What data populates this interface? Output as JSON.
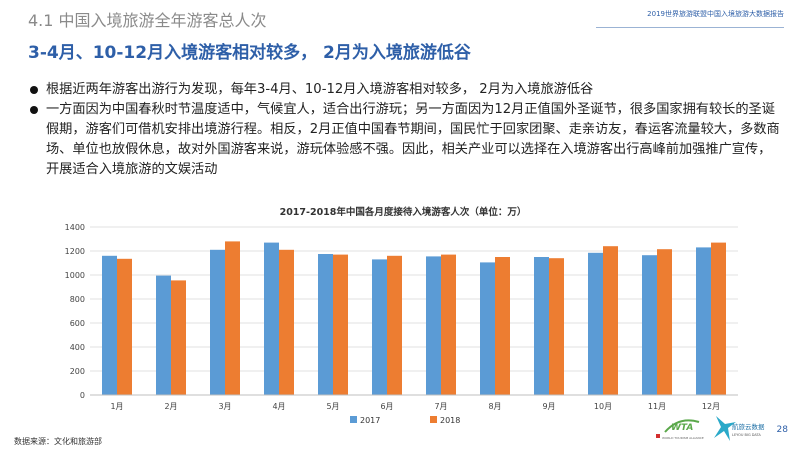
{
  "header": {
    "section_title": "4.1 中国入境旅游全年游客总人次",
    "report_title": "2019世界旅游联盟中国入境旅游大数据报告",
    "headline": "3-4月、10-12月入境游客相对较多， 2月为入境旅游低谷"
  },
  "bullets": [
    "根据近两年游客出游行为发现，每年3-4月、10-12月入境游客相对较多， 2月为入境旅游低谷",
    "一方面因为中国春秋时节温度适中，气候宜人，适合出行游玩；另一方面因为12月正值国外圣诞节，很多国家拥有较长的圣诞假期，游客们可借机安排出境游行程。相反，2月正值中国春节期间，国民忙于回家团聚、走亲访友，春运客流量较大，多数商场、单位也放假休息，故对外国游客来说，游玩体验感不强。因此，相关产业可以选择在入境游客出行高峰前加强推广宣传，开展适合入境旅游的文娱活动"
  ],
  "chart_data": {
    "type": "bar",
    "title": "2017-2018年中国各月度接待入境游客人次（单位：万）",
    "categories": [
      "1月",
      "2月",
      "3月",
      "4月",
      "5月",
      "6月",
      "7月",
      "8月",
      "9月",
      "10月",
      "11月",
      "12月"
    ],
    "series": [
      {
        "name": "2017",
        "color": "#5b9bd5",
        "values": [
          1160,
          995,
          1210,
          1270,
          1175,
          1130,
          1155,
          1105,
          1150,
          1185,
          1165,
          1230
        ]
      },
      {
        "name": "2018",
        "color": "#ed7d31",
        "values": [
          1135,
          955,
          1280,
          1210,
          1170,
          1160,
          1170,
          1150,
          1140,
          1240,
          1215,
          1270
        ]
      }
    ],
    "ylim": [
      0,
      1400
    ],
    "yticks": [
      0,
      200,
      400,
      600,
      800,
      1000,
      1200,
      1400
    ],
    "grid": true,
    "legend": "bottom"
  },
  "footer": {
    "source": "数据来源：文化和旅游部",
    "page_number": "28"
  },
  "logos": {
    "wta_text": "WTA",
    "wta_subtext": "WORLD TOURISM ALLIANCE",
    "brand_text": "航旅云数据",
    "brand_subtext": "LEYOU BIG DATA"
  }
}
